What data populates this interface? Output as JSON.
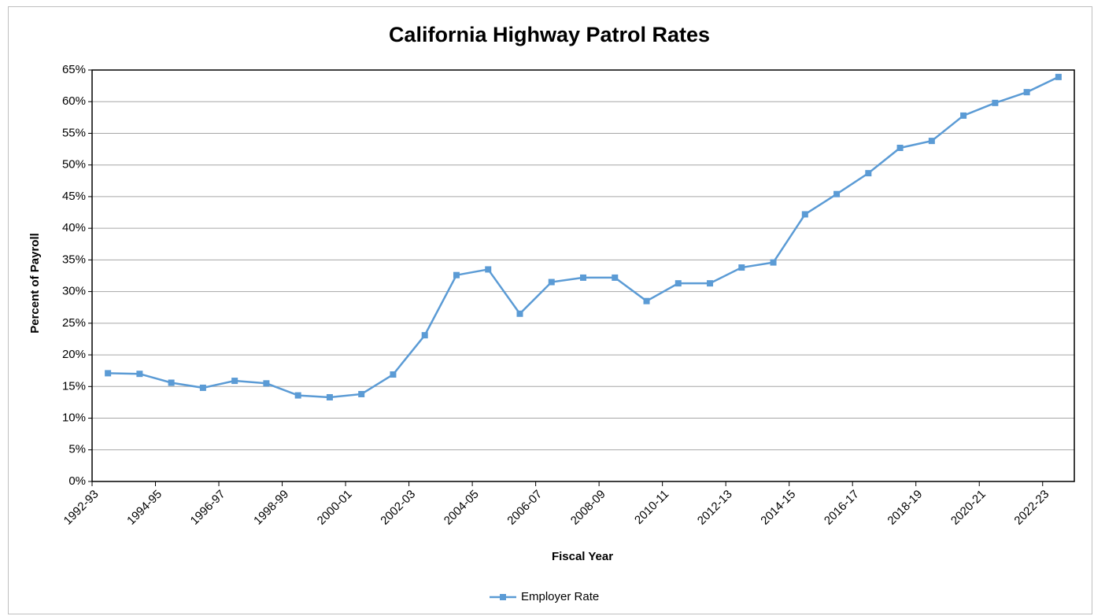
{
  "chart_data": {
    "type": "line",
    "title": "California Highway Patrol Rates",
    "x_label": "Fiscal Year",
    "y_label": "Percent of Payroll",
    "categories": [
      "1992-93",
      null,
      "1994-95",
      null,
      "1996-97",
      null,
      "1998-99",
      null,
      "2000-01",
      null,
      "2002-03",
      null,
      "2004-05",
      null,
      "2006-07",
      null,
      "2008-09",
      null,
      "2010-11",
      null,
      "2012-13",
      null,
      "2014-15",
      null,
      "2016-17",
      null,
      "2018-19",
      null,
      "2020-21",
      null,
      "2022-23"
    ],
    "series": [
      {
        "name": "Employer Rate",
        "color": "#5b9bd5",
        "values": [
          17.1,
          17.0,
          15.6,
          14.8,
          15.9,
          15.5,
          13.6,
          13.3,
          13.8,
          16.9,
          23.1,
          32.6,
          33.5,
          26.5,
          31.5,
          32.2,
          32.2,
          28.5,
          31.3,
          31.3,
          33.8,
          34.6,
          42.2,
          45.4,
          48.7,
          52.7,
          53.8,
          57.8,
          59.8,
          61.5,
          63.9
        ]
      }
    ],
    "ylim": [
      0,
      65
    ],
    "yticks": [
      {
        "value": 0,
        "label": "0%"
      },
      {
        "value": 5,
        "label": "5%"
      },
      {
        "value": 10,
        "label": "10%"
      },
      {
        "value": 15,
        "label": "15%"
      },
      {
        "value": 20,
        "label": "20%"
      },
      {
        "value": 25,
        "label": "25%"
      },
      {
        "value": 30,
        "label": "30%"
      },
      {
        "value": 35,
        "label": "35%"
      },
      {
        "value": 40,
        "label": "40%"
      },
      {
        "value": 45,
        "label": "45%"
      },
      {
        "value": 50,
        "label": "50%"
      },
      {
        "value": 55,
        "label": "55%"
      },
      {
        "value": 60,
        "label": "60%"
      },
      {
        "value": 65,
        "label": "65%"
      }
    ],
    "grid": true,
    "legend": "bottom"
  }
}
